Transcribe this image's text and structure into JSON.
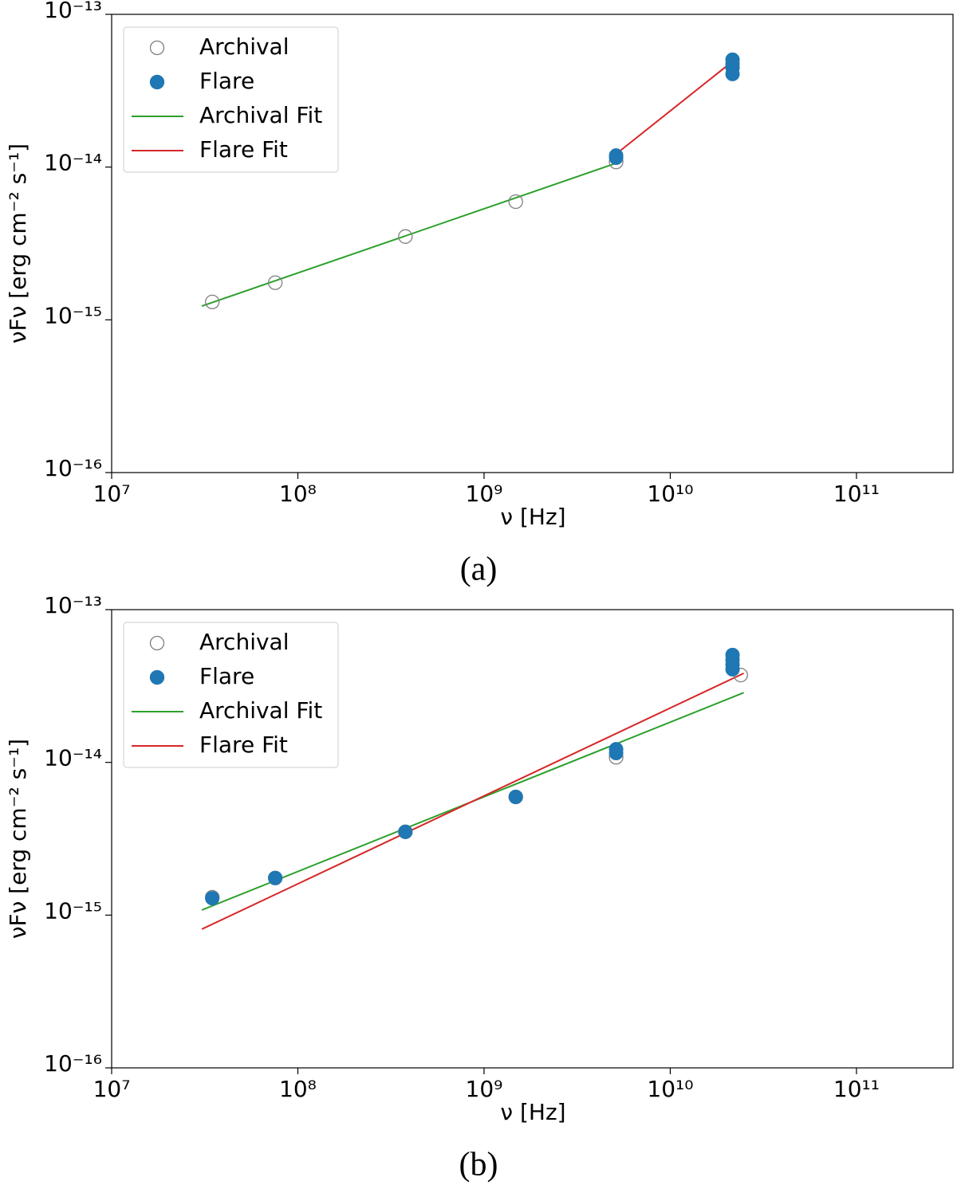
{
  "chart_data": [
    {
      "type": "scatter",
      "caption": "(a)",
      "x_label": "ν [Hz]",
      "y_label": "νFν [erg cm⁻² s⁻¹]",
      "xscale": "log",
      "yscale": "log",
      "xlim": [
        10000000.0,
        330000000000.0
      ],
      "ylim": [
        1e-16,
        1e-13
      ],
      "xticks": [
        {
          "value": 10000000.0,
          "label": "10⁷"
        },
        {
          "value": 100000000.0,
          "label": "10⁸"
        },
        {
          "value": 1000000000.0,
          "label": "10⁹"
        },
        {
          "value": 10000000000.0,
          "label": "10¹⁰"
        },
        {
          "value": 100000000000.0,
          "label": "10¹¹"
        }
      ],
      "yticks": [
        {
          "value": 1e-16,
          "label": "10⁻¹⁶"
        },
        {
          "value": 1e-15,
          "label": "10⁻¹⁵"
        },
        {
          "value": 1e-14,
          "label": "10⁻¹⁴"
        },
        {
          "value": 1e-13,
          "label": "10⁻¹³"
        }
      ],
      "legend": "upper left",
      "series": [
        {
          "name": "Archival",
          "mark": "open-circle",
          "color": "#808080",
          "x": [
            34700000.0,
            75600000.0,
            378000000.0,
            1480000000.0,
            5120000000.0
          ],
          "values": [
            1.31e-15,
            1.75e-15,
            3.51e-15,
            5.94e-15,
            1.08e-14
          ]
        },
        {
          "name": "Flare",
          "mark": "circle",
          "color": "#1f77b4",
          "x": [
            5120000000.0,
            5120000000.0,
            21600000000.0,
            21600000000.0,
            21600000000.0,
            21600000000.0
          ],
          "values": [
            1.19e-14,
            1.15e-14,
            5.05e-14,
            4.75e-14,
            4.47e-14,
            4.07e-14
          ]
        },
        {
          "name": "Archival Fit",
          "mark": "line",
          "color": "#2ca02c",
          "x": [
            30500000.0,
            5120000000.0
          ],
          "values": [
            1.23e-15,
            1.06e-14
          ]
        },
        {
          "name": "Flare Fit",
          "mark": "line",
          "color": "#d62728",
          "x": [
            4780000000.0,
            21600000000.0
          ],
          "values": [
            1.14e-14,
            4.92e-14
          ]
        }
      ]
    },
    {
      "type": "scatter",
      "caption": "(b)",
      "x_label": "ν [Hz]",
      "y_label": "νFν [erg cm⁻² s⁻¹]",
      "xscale": "log",
      "yscale": "log",
      "xlim": [
        10000000.0,
        330000000000.0
      ],
      "ylim": [
        1e-16,
        1e-13
      ],
      "xticks": [
        {
          "value": 10000000.0,
          "label": "10⁷"
        },
        {
          "value": 100000000.0,
          "label": "10⁸"
        },
        {
          "value": 1000000000.0,
          "label": "10⁹"
        },
        {
          "value": 10000000000.0,
          "label": "10¹⁰"
        },
        {
          "value": 100000000000.0,
          "label": "10¹¹"
        }
      ],
      "yticks": [
        {
          "value": 1e-16,
          "label": "10⁻¹⁶"
        },
        {
          "value": 1e-15,
          "label": "10⁻¹⁵"
        },
        {
          "value": 1e-14,
          "label": "10⁻¹⁴"
        },
        {
          "value": 1e-13,
          "label": "10⁻¹³"
        }
      ],
      "legend": "upper left",
      "series": [
        {
          "name": "Archival",
          "mark": "open-circle",
          "color": "#808080",
          "x": [
            34700000.0,
            75600000.0,
            378000000.0,
            1480000000.0,
            5120000000.0,
            23900000000.0
          ],
          "values": [
            1.31e-15,
            1.75e-15,
            3.51e-15,
            5.94e-15,
            1.08e-14,
            3.73e-14
          ]
        },
        {
          "name": "Flare",
          "mark": "circle",
          "color": "#1f77b4",
          "x": [
            34700000.0,
            75600000.0,
            378000000.0,
            1480000000.0,
            5120000000.0,
            5120000000.0,
            21600000000.0,
            21600000000.0,
            21600000000.0,
            21600000000.0
          ],
          "values": [
            1.29e-15,
            1.75e-15,
            3.51e-15,
            5.94e-15,
            1.22e-14,
            1.15e-14,
            5.05e-14,
            4.69e-14,
            4.36e-14,
            4.07e-14
          ]
        },
        {
          "name": "Archival Fit",
          "mark": "line",
          "color": "#2ca02c",
          "x": [
            30500000.0,
            24800000000.0
          ],
          "values": [
            1.08e-15,
            2.86e-14
          ]
        },
        {
          "name": "Flare Fit",
          "mark": "line",
          "color": "#d62728",
          "x": [
            30500000.0,
            24800000000.0
          ],
          "values": [
            8.09e-16,
            3.83e-14
          ]
        }
      ]
    }
  ]
}
